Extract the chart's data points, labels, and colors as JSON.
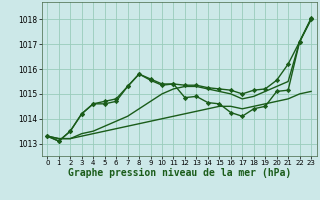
{
  "background_color": "#cce8e8",
  "grid_color": "#99ccbb",
  "line_color": "#1a5c1a",
  "xlabel": "Graphe pression niveau de la mer (hPa)",
  "ylim": [
    1012.5,
    1018.7
  ],
  "xlim": [
    -0.5,
    23.5
  ],
  "yticks": [
    1013,
    1014,
    1015,
    1016,
    1017,
    1018
  ],
  "xticks": [
    0,
    1,
    2,
    3,
    4,
    5,
    6,
    7,
    8,
    9,
    10,
    11,
    12,
    13,
    14,
    15,
    16,
    17,
    18,
    19,
    20,
    21,
    22,
    23
  ],
  "series": [
    {
      "x": [
        0,
        1,
        2,
        3,
        4,
        5,
        6,
        7,
        8,
        9,
        10,
        11,
        12,
        13,
        14,
        15,
        16,
        17,
        18,
        19,
        20,
        21,
        22,
        23
      ],
      "y": [
        1013.3,
        1013.2,
        1013.2,
        1013.3,
        1013.4,
        1013.5,
        1013.6,
        1013.7,
        1013.8,
        1013.9,
        1014.0,
        1014.1,
        1014.2,
        1014.3,
        1014.4,
        1014.5,
        1014.5,
        1014.4,
        1014.5,
        1014.6,
        1014.7,
        1014.8,
        1015.0,
        1015.1
      ],
      "marker": null,
      "lw": 1.0
    },
    {
      "x": [
        0,
        1,
        2,
        3,
        4,
        5,
        6,
        7,
        8,
        9,
        10,
        11,
        12,
        13,
        14,
        15,
        16,
        17,
        18,
        19,
        20,
        21,
        22,
        23
      ],
      "y": [
        1013.3,
        1013.2,
        1013.2,
        1013.4,
        1013.5,
        1013.7,
        1013.9,
        1014.1,
        1014.4,
        1014.7,
        1015.0,
        1015.2,
        1015.3,
        1015.3,
        1015.2,
        1015.1,
        1015.0,
        1014.8,
        1014.9,
        1015.1,
        1015.3,
        1015.5,
        1017.1,
        1018.0
      ],
      "marker": null,
      "lw": 1.0
    },
    {
      "x": [
        0,
        1,
        2,
        3,
        4,
        5,
        6,
        7,
        8,
        9,
        10,
        11,
        12,
        13,
        14,
        15,
        16,
        17,
        18,
        19,
        20,
        21,
        22,
        23
      ],
      "y": [
        1013.3,
        1013.1,
        1013.5,
        1014.2,
        1014.6,
        1014.7,
        1014.8,
        1015.3,
        1015.8,
        1015.55,
        1015.35,
        1015.4,
        1014.85,
        1014.9,
        1014.65,
        1014.6,
        1014.25,
        1014.1,
        1014.4,
        1014.5,
        1015.1,
        1015.15,
        1017.1,
        1018.0
      ],
      "marker": "D",
      "ms": 2.2,
      "lw": 1.0
    },
    {
      "x": [
        0,
        1,
        2,
        3,
        4,
        5,
        6,
        7,
        8,
        9,
        10,
        11,
        12,
        13,
        14,
        15,
        16,
        17,
        18,
        19,
        20,
        21,
        22,
        23
      ],
      "y": [
        1013.3,
        1013.1,
        1013.5,
        1014.2,
        1014.6,
        1014.6,
        1014.7,
        1015.3,
        1015.8,
        1015.6,
        1015.4,
        1015.4,
        1015.35,
        1015.35,
        1015.25,
        1015.2,
        1015.15,
        1015.0,
        1015.15,
        1015.2,
        1015.55,
        1016.2,
        1017.1,
        1018.05
      ],
      "marker": "D",
      "ms": 2.2,
      "lw": 1.0
    }
  ]
}
